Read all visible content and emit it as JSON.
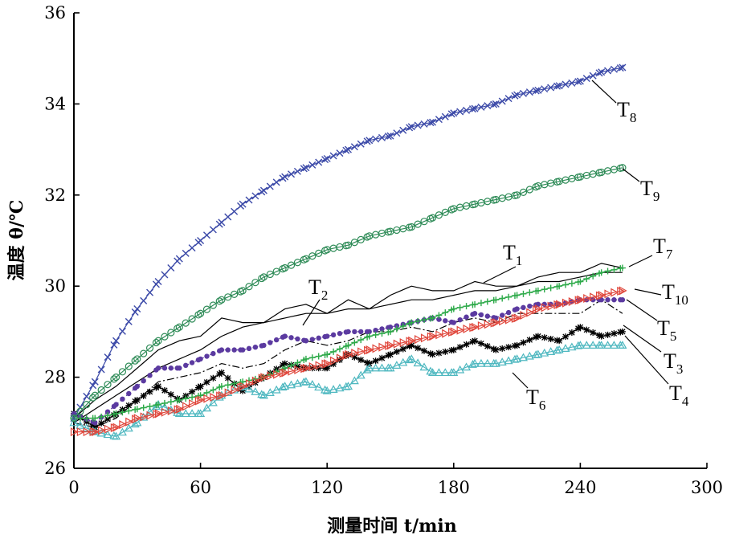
{
  "chart_data": {
    "type": "line",
    "xlabel": "测量时间 t/min",
    "ylabel": "温度 θ/℃",
    "xlim": [
      0,
      300
    ],
    "ylim": [
      26,
      36
    ],
    "xticks": [
      0,
      60,
      120,
      180,
      240,
      300
    ],
    "yticks": [
      26,
      28,
      30,
      32,
      34,
      36
    ],
    "grid": false,
    "series": [
      {
        "name": "T1",
        "label_main": "T",
        "label_sub": "1",
        "color": "#000000",
        "marker": "none",
        "dash": "none",
        "x": [
          0,
          10,
          20,
          30,
          40,
          50,
          60,
          70,
          80,
          90,
          100,
          110,
          120,
          130,
          140,
          150,
          160,
          170,
          180,
          190,
          200,
          210,
          220,
          230,
          240,
          250,
          260
        ],
        "y": [
          27.1,
          27.5,
          27.8,
          28.2,
          28.6,
          28.8,
          28.9,
          29.3,
          29.2,
          29.2,
          29.5,
          29.6,
          29.4,
          29.7,
          29.5,
          29.8,
          30.0,
          29.9,
          29.9,
          30.1,
          30.0,
          30.0,
          30.2,
          30.3,
          30.3,
          30.5,
          30.4
        ]
      },
      {
        "name": "T2",
        "label_main": "T",
        "label_sub": "2",
        "color": "#000000",
        "marker": "none",
        "dash": "none",
        "x": [
          0,
          10,
          20,
          30,
          40,
          50,
          60,
          70,
          80,
          90,
          100,
          110,
          120,
          130,
          140,
          150,
          160,
          170,
          180,
          190,
          200,
          210,
          220,
          230,
          240,
          250,
          260
        ],
        "y": [
          27.0,
          27.3,
          27.6,
          27.9,
          28.2,
          28.4,
          28.6,
          28.9,
          29.1,
          29.2,
          29.3,
          29.4,
          29.4,
          29.5,
          29.5,
          29.6,
          29.7,
          29.7,
          29.8,
          29.9,
          29.9,
          30.0,
          30.1,
          30.1,
          30.2,
          30.3,
          30.3
        ]
      },
      {
        "name": "T3",
        "label_main": "T",
        "label_sub": "3",
        "color": "#000000",
        "marker": "none",
        "dash": "dashdot",
        "x": [
          0,
          10,
          20,
          30,
          40,
          50,
          60,
          70,
          80,
          90,
          100,
          110,
          120,
          130,
          140,
          150,
          160,
          170,
          180,
          190,
          200,
          210,
          220,
          230,
          240,
          250,
          260
        ],
        "y": [
          27.0,
          26.9,
          27.1,
          27.5,
          27.9,
          28.0,
          28.1,
          28.3,
          28.2,
          28.3,
          28.6,
          28.8,
          28.7,
          28.8,
          29.0,
          29.0,
          29.1,
          29.0,
          29.2,
          29.3,
          29.2,
          29.4,
          29.4,
          29.4,
          29.4,
          29.7,
          29.4
        ]
      },
      {
        "name": "T4",
        "label_main": "T",
        "label_sub": "4",
        "color": "#000000",
        "marker": "asterisk",
        "dash": "none",
        "x": [
          0,
          10,
          20,
          30,
          40,
          50,
          60,
          70,
          80,
          90,
          100,
          110,
          120,
          130,
          140,
          150,
          160,
          170,
          180,
          190,
          200,
          210,
          220,
          230,
          240,
          250,
          260
        ],
        "y": [
          27.2,
          26.9,
          27.2,
          27.5,
          27.8,
          27.5,
          27.8,
          28.1,
          27.7,
          28.0,
          28.3,
          28.2,
          28.2,
          28.5,
          28.3,
          28.5,
          28.7,
          28.5,
          28.6,
          28.8,
          28.6,
          28.7,
          28.9,
          28.8,
          29.1,
          28.9,
          29.0
        ]
      },
      {
        "name": "T5",
        "label_main": "T",
        "label_sub": "5",
        "color": "#5b3aa0",
        "marker": "dot",
        "dash": "dotted",
        "x": [
          0,
          10,
          20,
          30,
          40,
          50,
          60,
          70,
          80,
          90,
          100,
          110,
          120,
          130,
          140,
          150,
          160,
          170,
          180,
          190,
          200,
          210,
          220,
          230,
          240,
          250,
          260
        ],
        "y": [
          27.2,
          27.0,
          27.4,
          27.8,
          28.2,
          28.2,
          28.4,
          28.6,
          28.6,
          28.7,
          28.9,
          28.8,
          28.9,
          29.0,
          29.0,
          29.1,
          29.2,
          29.3,
          29.2,
          29.4,
          29.3,
          29.5,
          29.6,
          29.6,
          29.7,
          29.7,
          29.7
        ]
      },
      {
        "name": "T6",
        "label_main": "T",
        "label_sub": "6",
        "color": "#4fb8c0",
        "marker": "triangle",
        "dash": "none",
        "x": [
          0,
          10,
          20,
          30,
          40,
          50,
          60,
          70,
          80,
          90,
          100,
          110,
          120,
          130,
          140,
          150,
          160,
          170,
          180,
          190,
          200,
          210,
          220,
          230,
          240,
          250,
          260
        ],
        "y": [
          27.0,
          26.8,
          26.7,
          27.0,
          27.4,
          27.2,
          27.2,
          27.6,
          27.8,
          27.6,
          27.8,
          27.9,
          27.7,
          27.8,
          28.2,
          28.2,
          28.4,
          28.1,
          28.1,
          28.3,
          28.3,
          28.4,
          28.5,
          28.6,
          28.7,
          28.7,
          28.7
        ]
      },
      {
        "name": "T7",
        "label_main": "T",
        "label_sub": "7",
        "color": "#2eaa4a",
        "marker": "plus",
        "dash": "none",
        "x": [
          0,
          10,
          20,
          30,
          40,
          50,
          60,
          70,
          80,
          90,
          100,
          110,
          120,
          130,
          140,
          150,
          160,
          170,
          180,
          190,
          200,
          210,
          220,
          230,
          240,
          250,
          260
        ],
        "y": [
          27.1,
          27.1,
          27.2,
          27.3,
          27.4,
          27.5,
          27.6,
          27.8,
          27.9,
          28.0,
          28.2,
          28.4,
          28.5,
          28.7,
          28.9,
          29.0,
          29.2,
          29.3,
          29.5,
          29.6,
          29.7,
          29.8,
          29.9,
          30.0,
          30.1,
          30.3,
          30.4
        ]
      },
      {
        "name": "T8",
        "label_main": "T",
        "label_sub": "8",
        "color": "#3c4aa8",
        "marker": "x",
        "dash": "none",
        "x": [
          0,
          10,
          20,
          30,
          40,
          50,
          60,
          70,
          80,
          90,
          100,
          110,
          120,
          130,
          140,
          150,
          160,
          170,
          180,
          190,
          200,
          210,
          220,
          230,
          240,
          250,
          260
        ],
        "y": [
          27.1,
          27.9,
          28.8,
          29.5,
          30.1,
          30.6,
          31.0,
          31.4,
          31.8,
          32.1,
          32.4,
          32.6,
          32.8,
          33.0,
          33.2,
          33.3,
          33.5,
          33.6,
          33.8,
          33.9,
          34.0,
          34.2,
          34.3,
          34.4,
          34.5,
          34.7,
          34.8
        ]
      },
      {
        "name": "T9",
        "label_main": "T",
        "label_sub": "9",
        "color": "#2e8b57",
        "marker": "circle",
        "dash": "none",
        "x": [
          0,
          10,
          20,
          30,
          40,
          50,
          60,
          70,
          80,
          90,
          100,
          110,
          120,
          130,
          140,
          150,
          160,
          170,
          180,
          190,
          200,
          210,
          220,
          230,
          240,
          250,
          260
        ],
        "y": [
          27.1,
          27.6,
          28.0,
          28.4,
          28.8,
          29.1,
          29.4,
          29.7,
          29.9,
          30.2,
          30.4,
          30.6,
          30.8,
          30.9,
          31.1,
          31.2,
          31.3,
          31.5,
          31.7,
          31.8,
          31.9,
          32.0,
          32.2,
          32.3,
          32.4,
          32.5,
          32.6
        ]
      },
      {
        "name": "T10",
        "label_main": "T",
        "label_sub": "10",
        "color": "#e0473c",
        "marker": "tri-right",
        "dash": "none",
        "x": [
          0,
          10,
          20,
          30,
          40,
          50,
          60,
          70,
          80,
          90,
          100,
          110,
          120,
          130,
          140,
          150,
          160,
          170,
          180,
          190,
          200,
          210,
          220,
          230,
          240,
          250,
          260
        ],
        "y": [
          26.8,
          26.8,
          26.9,
          27.1,
          27.2,
          27.3,
          27.5,
          27.6,
          27.8,
          28.0,
          28.1,
          28.2,
          28.3,
          28.5,
          28.6,
          28.7,
          28.8,
          28.9,
          29.0,
          29.1,
          29.2,
          29.3,
          29.5,
          29.6,
          29.7,
          29.8,
          29.9
        ]
      }
    ]
  }
}
